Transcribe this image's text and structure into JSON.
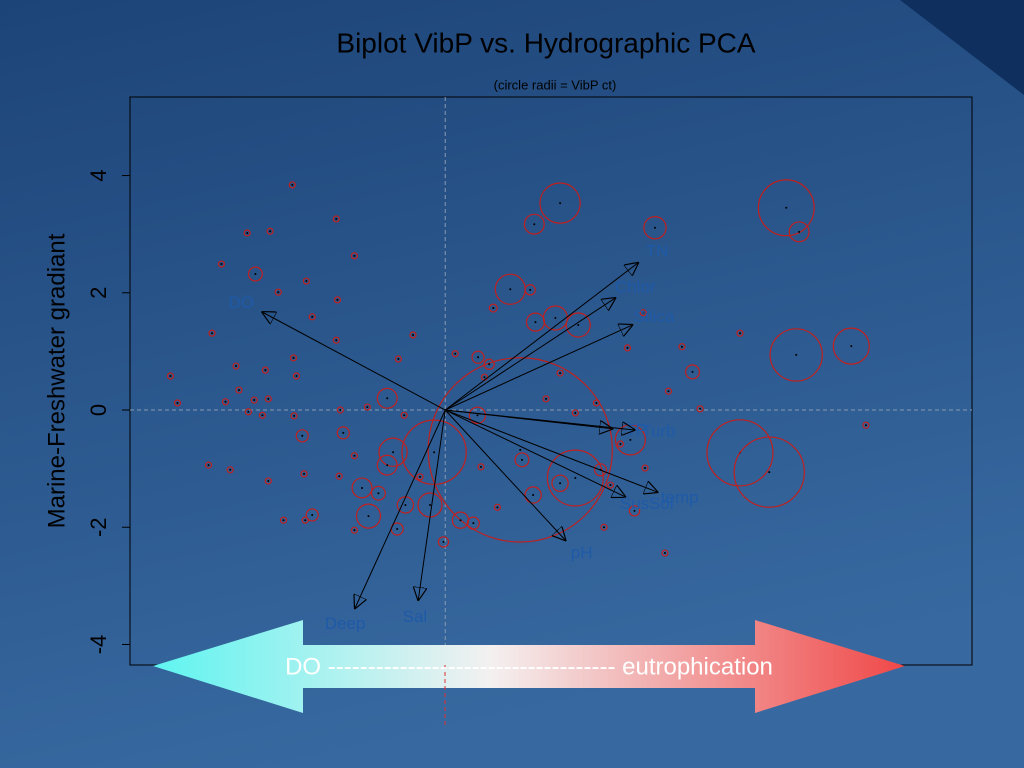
{
  "chart_data": {
    "type": "biplot",
    "title": "Biplot VibP vs. Hydrographic PCA",
    "subtitle": "(circle radii = VibP ct)",
    "ylabel": "Marine-Freshwater gradiant",
    "annotation": "DO ------------------------------------ eutrophication",
    "xlim": [
      -5.38,
      8.99
    ],
    "ylim": [
      -4.35,
      5.34
    ],
    "yticks": [
      -4,
      -2,
      0,
      2,
      4
    ],
    "color": "#c0201f",
    "x": [
      1.96,
      1.52,
      3.58,
      5.82,
      6.04,
      1.11,
      1.45,
      1.88,
      1.54,
      2.27,
      0.82,
      5.99,
      6.93,
      4.22,
      5.03,
      5.53,
      1.28,
      -0.19,
      2.22,
      3.16,
      -0.99,
      -0.89,
      -0.99,
      -1.42,
      -1.31,
      -0.26,
      -0.68,
      0.26,
      1.5,
      1.96,
      1.31,
      0.55,
      -3.24,
      -2.44,
      -1.74,
      -2.27,
      0.48,
      -0.03,
      -0.82,
      3.23,
      0.56,
      0.75,
      2.65,
      -1.14,
      -2.61,
      -1.86,
      -3.38,
      -2.99,
      -3.82,
      -1.55,
      -2.85,
      -2.37,
      -1.84,
      -2.27,
      -3.98,
      -1.86,
      -0.55,
      -0.8,
      -2.59,
      -4.69,
      -3.57,
      -3.07,
      -2.54,
      -3.52,
      -3.26,
      -3.02,
      -3.75,
      -3.36,
      -3.12,
      -4.57,
      -1.79,
      -1.33,
      -0.7,
      -2.58,
      -4.04,
      -3.67,
      -3.02,
      -2.41,
      -1.81,
      -1.55,
      -0.43,
      0.61,
      0.17,
      4.35,
      3.81,
      5.03,
      4.04,
      7.18,
      3.75,
      2.71,
      0.89,
      -2.76,
      -2.39,
      -1.55,
      3.41,
      2.99,
      2.82,
      1.72,
      1.96,
      2.22,
      0.67,
      3.11,
      3.38,
      2.58
    ],
    "values": [
      3.53,
      3.17,
      3.11,
      3.45,
      3.04,
      2.06,
      2.05,
      1.57,
      1.5,
      1.45,
      1.74,
      0.94,
      1.09,
      0.65,
      -0.73,
      -1.06,
      -0.68,
      -0.72,
      -1.16,
      -0.51,
      0.2,
      -0.72,
      -0.94,
      -1.33,
      -1.81,
      -1.62,
      -1.62,
      -1.88,
      -1.45,
      -1.25,
      -0.85,
      -0.09,
      2.32,
      -0.44,
      -0.39,
      -1.79,
      -1.93,
      -2.25,
      -2.03,
      -1.72,
      0.9,
      0.78,
      -1.02,
      -1.42,
      3.84,
      3.26,
      3.02,
      3.05,
      2.49,
      2.63,
      2.01,
      2.2,
      1.88,
      1.59,
      1.31,
      1.19,
      1.28,
      0.87,
      0.89,
      0.58,
      0.75,
      0.68,
      0.58,
      0.34,
      0.17,
      0.19,
      0.14,
      -0.03,
      -0.09,
      0.12,
      0,
      0.05,
      -0.09,
      -0.1,
      -0.94,
      -1.02,
      -1.21,
      -1.09,
      -1.13,
      -0.78,
      -1.14,
      -0.97,
      0.96,
      0.02,
      0.32,
      1.31,
      1.08,
      -0.26,
      -2.44,
      -2.0,
      -1.66,
      -1.88,
      -1.88,
      -2.05,
      -0.99,
      -0.58,
      -1.28,
      0.19,
      0.63,
      -0.05,
      0.56,
      1.06,
      1.66,
      0.12
    ],
    "sizes": [
      6.7,
      3.3,
      3.7,
      9.3,
      3.3,
      5,
      1.7,
      4,
      3,
      4,
      1.3,
      8.7,
      6,
      2.3,
      11,
      11.7,
      30.7,
      10.7,
      9.3,
      5,
      3.3,
      4.7,
      3.3,
      3.3,
      4,
      4,
      2.7,
      2.7,
      2.7,
      2.7,
      2.3,
      2.7,
      2.3,
      2,
      2,
      2,
      2,
      1.7,
      2,
      1.7,
      2,
      1.7,
      2,
      2.3,
      1,
      1,
      1,
      1,
      1,
      1,
      1,
      1,
      1,
      1,
      1,
      1,
      1,
      1,
      1,
      1,
      1,
      1,
      1,
      1,
      1,
      1,
      1,
      1,
      1,
      1,
      1,
      1,
      1,
      1,
      1,
      1,
      1,
      1,
      1,
      1,
      1,
      1,
      1,
      1,
      1,
      1,
      1,
      1,
      1,
      1,
      1,
      1,
      1,
      1,
      1,
      1,
      1,
      1,
      1,
      1,
      1,
      1,
      1,
      1
    ],
    "loadings": {
      "color": "#1f5aa8",
      "names": [
        "TN",
        "Chlor",
        "Silica",
        "TP",
        "Turb",
        "DO",
        "Deep",
        "Sal",
        "pH",
        "SusSol",
        "temp"
      ],
      "x": [
        3.29,
        2.9,
        3.19,
        2.85,
        3.23,
        -3.12,
        -1.54,
        -0.46,
        2.05,
        3.07,
        3.62
      ],
      "y": [
        2.51,
        1.91,
        1.45,
        -0.32,
        -0.34,
        1.67,
        -3.38,
        -3.24,
        -2.22,
        -1.48,
        -1.4
      ]
    }
  }
}
